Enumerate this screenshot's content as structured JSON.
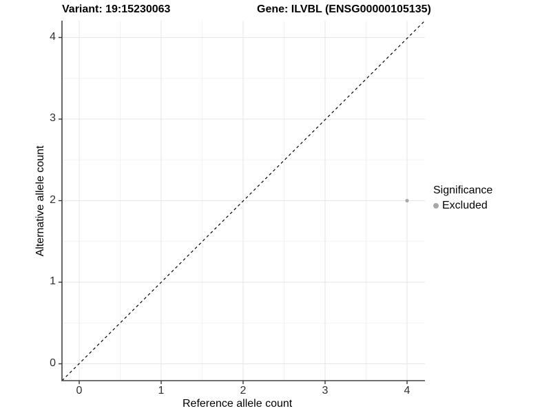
{
  "titles": {
    "variant": "Variant: 19:15230063",
    "gene": "Gene: ILVBL (ENSG00000105135)"
  },
  "chart_data": {
    "type": "scatter",
    "title": "Variant: 19:15230063   Gene: ILVBL (ENSG00000105135)",
    "xlabel": "Reference allele count",
    "ylabel": "Alternative allele count",
    "xlim": [
      -0.21,
      4.22
    ],
    "ylim": [
      -0.21,
      4.21
    ],
    "x_ticks": [
      "0",
      "1",
      "2",
      "3",
      "4"
    ],
    "y_ticks": [
      "0",
      "1",
      "2",
      "3",
      "4"
    ],
    "grid": "major and minor gridlines, light gray on white",
    "reference_line": {
      "type": "identity y=x",
      "style": "dashed",
      "color": "#000000"
    },
    "series": [
      {
        "name": "Excluded",
        "color": "#a8a8a8",
        "points": [
          {
            "x": 4,
            "y": 2
          }
        ]
      }
    ],
    "legend": {
      "title": "Significance",
      "position": "right-middle",
      "items": [
        {
          "label": "Excluded",
          "marker": "circle",
          "color": "#a8a8a8"
        }
      ]
    }
  },
  "colors": {
    "background": "#ffffff",
    "axis_line": "#404040",
    "tick_mark": "#333333",
    "grid_major": "#e6e6e6",
    "grid_minor": "#f2f2f2",
    "point": "#a8a8a8",
    "dashed_line": "#000000"
  }
}
